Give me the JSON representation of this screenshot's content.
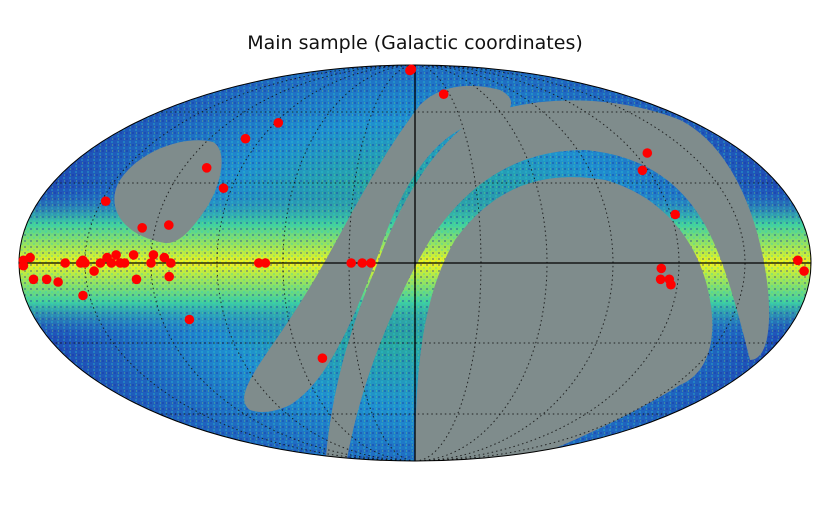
{
  "chart_data": {
    "type": "scatter",
    "title": "Main sample (Galactic coordinates)",
    "projection": "mollweide",
    "coordinate_system": "galactic",
    "xlabel": "",
    "ylabel": "",
    "xlim": [
      -180,
      180
    ],
    "ylim": [
      -90,
      90
    ],
    "grid": true,
    "grid_style": "dotted",
    "graticule_longitudes": [
      -150,
      -120,
      -90,
      -60,
      -30,
      0,
      30,
      60,
      90,
      120,
      150
    ],
    "graticule_latitudes": [
      -60,
      -30,
      0,
      30,
      60
    ],
    "background_density_colormap": [
      "#1a1aa0",
      "#2a5fd8",
      "#22b6c8",
      "#7fe07a",
      "#f2f21a"
    ],
    "masked_region_color": "#7f8c8c",
    "marker_color": "#ff0000",
    "series": [
      {
        "points": [
          {
            "l": 178,
            "b": 1
          },
          {
            "l": 178,
            "b": -1
          },
          {
            "l": 175,
            "b": 2
          },
          {
            "l": 174,
            "b": -6
          },
          {
            "l": 168,
            "b": -6
          },
          {
            "l": 163,
            "b": -7
          },
          {
            "l": 159,
            "b": 0
          },
          {
            "l": 153,
            "b": -12
          },
          {
            "l": 148,
            "b": 23
          },
          {
            "l": 152,
            "b": 0
          },
          {
            "l": 151,
            "b": 1
          },
          {
            "l": 150,
            "b": 0
          },
          {
            "l": 146,
            "b": -3
          },
          {
            "l": 143,
            "b": 0
          },
          {
            "l": 140,
            "b": 2
          },
          {
            "l": 138,
            "b": 0
          },
          {
            "l": 136,
            "b": 3
          },
          {
            "l": 134,
            "b": 0
          },
          {
            "l": 132,
            "b": 0
          },
          {
            "l": 128,
            "b": 3
          },
          {
            "l": 126,
            "b": 13
          },
          {
            "l": 127,
            "b": -6
          },
          {
            "l": 120,
            "b": 0
          },
          {
            "l": 119,
            "b": 3
          },
          {
            "l": 114,
            "b": 14
          },
          {
            "l": 114,
            "b": 2
          },
          {
            "l": 111,
            "b": 0
          },
          {
            "l": 112,
            "b": -5
          },
          {
            "l": 107,
            "b": -21
          },
          {
            "l": 108,
            "b": 36
          },
          {
            "l": 99,
            "b": 48
          },
          {
            "l": 88,
            "b": 55
          },
          {
            "l": 94,
            "b": 28
          },
          {
            "l": 71,
            "b": 0
          },
          {
            "l": 68,
            "b": 0
          },
          {
            "l": 29,
            "b": 0
          },
          {
            "l": 24,
            "b": 0
          },
          {
            "l": 20,
            "b": 0
          },
          {
            "l": 48,
            "b": -36
          },
          {
            "l": 10,
            "b": 84
          },
          {
            "l": 8,
            "b": 85
          },
          {
            "l": -25,
            "b": 69
          },
          {
            "l": -127,
            "b": 42
          },
          {
            "l": -117,
            "b": 35
          },
          {
            "l": -122,
            "b": 18
          },
          {
            "l": -112,
            "b": -2
          },
          {
            "l": -112,
            "b": -6
          },
          {
            "l": -116,
            "b": -6
          },
          {
            "l": -117,
            "b": -8
          },
          {
            "l": -174,
            "b": 1
          },
          {
            "l": -177,
            "b": -3
          }
        ]
      }
    ]
  }
}
